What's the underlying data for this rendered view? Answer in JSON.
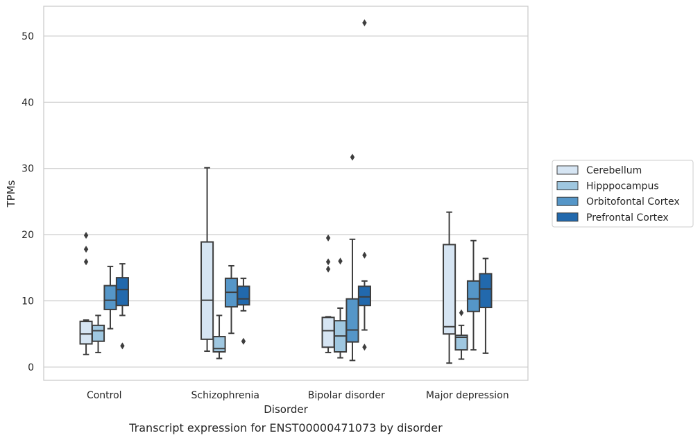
{
  "chart_data": {
    "type": "box",
    "caption": "Transcript expression for ENST00000471073 by disorder",
    "xlabel": "Disorder",
    "ylabel": "TPMs",
    "ylim": [
      -2,
      54.5
    ],
    "yticks": [
      0,
      10,
      20,
      30,
      40,
      50
    ],
    "grid": "horizontal",
    "legend_position": "right",
    "categories": [
      "Control",
      "Schizophrenia",
      "Bipolar disorder",
      "Major depression"
    ],
    "series": [
      {
        "name": "Cerebellum",
        "color": "#d6e5f3",
        "boxes": [
          {
            "whislo": 1.9,
            "q1": 3.5,
            "med": 5.0,
            "q3": 6.9,
            "whishi": 7.1,
            "fliers": [
              15.9,
              17.8,
              19.9
            ]
          },
          {
            "whislo": 2.4,
            "q1": 4.2,
            "med": 10.1,
            "q3": 18.9,
            "whishi": 30.1,
            "fliers": []
          },
          {
            "whislo": 2.2,
            "q1": 3.0,
            "med": 5.5,
            "q3": 7.5,
            "whishi": 7.6,
            "fliers": [
              14.8,
              15.9,
              19.5
            ]
          },
          {
            "whislo": 0.6,
            "q1": 5.0,
            "med": 6.1,
            "q3": 18.5,
            "whishi": 23.4,
            "fliers": []
          }
        ]
      },
      {
        "name": "Hipppocampus",
        "color": "#9fc7e0",
        "boxes": [
          {
            "whislo": 2.2,
            "q1": 3.9,
            "med": 5.5,
            "q3": 6.3,
            "whishi": 7.8,
            "fliers": []
          },
          {
            "whislo": 1.3,
            "q1": 2.3,
            "med": 2.8,
            "q3": 4.6,
            "whishi": 7.8,
            "fliers": []
          },
          {
            "whislo": 1.4,
            "q1": 2.3,
            "med": 4.7,
            "q3": 7.0,
            "whishi": 8.9,
            "fliers": [
              16.0
            ]
          },
          {
            "whislo": 1.2,
            "q1": 2.6,
            "med": 4.5,
            "q3": 4.8,
            "whishi": 6.3,
            "fliers": [
              8.2
            ]
          }
        ]
      },
      {
        "name": "Orbitofontal Cortex",
        "color": "#5596c8",
        "boxes": [
          {
            "whislo": 5.8,
            "q1": 8.7,
            "med": 10.1,
            "q3": 12.3,
            "whishi": 15.2,
            "fliers": []
          },
          {
            "whislo": 5.1,
            "q1": 9.1,
            "med": 11.3,
            "q3": 13.4,
            "whishi": 15.3,
            "fliers": []
          },
          {
            "whislo": 1.0,
            "q1": 3.8,
            "med": 5.6,
            "q3": 10.3,
            "whishi": 19.3,
            "fliers": [
              31.7
            ]
          },
          {
            "whislo": 2.6,
            "q1": 8.4,
            "med": 10.3,
            "q3": 13.0,
            "whishi": 19.1,
            "fliers": []
          }
        ]
      },
      {
        "name": "Prefrontal Cortex",
        "color": "#2269ad",
        "boxes": [
          {
            "whislo": 7.8,
            "q1": 9.3,
            "med": 11.7,
            "q3": 13.5,
            "whishi": 15.6,
            "fliers": [
              3.2
            ]
          },
          {
            "whislo": 8.5,
            "q1": 9.4,
            "med": 10.3,
            "q3": 12.2,
            "whishi": 13.4,
            "fliers": [
              3.9
            ]
          },
          {
            "whislo": 5.6,
            "q1": 9.3,
            "med": 10.6,
            "q3": 12.2,
            "whishi": 13.0,
            "fliers": [
              3.0,
              16.9,
              52.0
            ]
          },
          {
            "whislo": 2.1,
            "q1": 9.0,
            "med": 11.8,
            "q3": 14.1,
            "whishi": 16.4,
            "fliers": []
          }
        ]
      }
    ]
  }
}
